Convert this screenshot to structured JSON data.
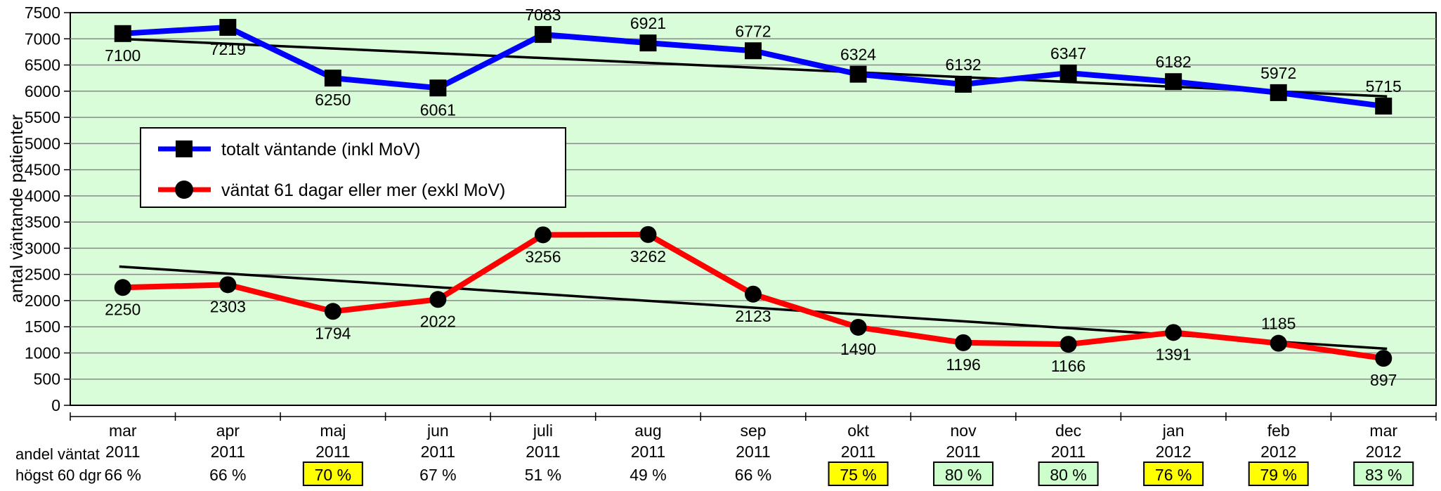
{
  "chart_data": {
    "type": "line",
    "ylabel": "antal väntande patienter",
    "ylim": [
      0,
      7500
    ],
    "ytick_step": 500,
    "grid": true,
    "plot_background": "#d9fcd9",
    "legend_placement": "upper-left",
    "categories": [
      {
        "month": "mar",
        "year": "2011"
      },
      {
        "month": "apr",
        "year": "2011"
      },
      {
        "month": "maj",
        "year": "2011"
      },
      {
        "month": "jun",
        "year": "2011"
      },
      {
        "month": "juli",
        "year": "2011"
      },
      {
        "month": "aug",
        "year": "2011"
      },
      {
        "month": "sep",
        "year": "2011"
      },
      {
        "month": "okt",
        "year": "2011"
      },
      {
        "month": "nov",
        "year": "2011"
      },
      {
        "month": "dec",
        "year": "2011"
      },
      {
        "month": "jan",
        "year": "2012"
      },
      {
        "month": "feb",
        "year": "2012"
      },
      {
        "month": "mar",
        "year": "2012"
      }
    ],
    "series": [
      {
        "name": "totalt väntande (inkl MoV)",
        "color": "#0000ff",
        "marker": "square",
        "values": [
          7100,
          7219,
          6250,
          6061,
          7083,
          6921,
          6772,
          6324,
          6132,
          6347,
          6182,
          5972,
          5715
        ],
        "label_position": [
          "below",
          "below",
          "below",
          "below",
          "above",
          "above",
          "above",
          "above",
          "above",
          "above",
          "above",
          "above",
          "above"
        ]
      },
      {
        "name": "väntat 61 dagar eller mer (exkl MoV)",
        "color": "#ff0000",
        "marker": "circle",
        "values": [
          2250,
          2303,
          1794,
          2022,
          3256,
          3262,
          2123,
          1490,
          1196,
          1166,
          1391,
          1185,
          897
        ],
        "label_position": [
          "below",
          "below",
          "below",
          "below",
          "below",
          "below",
          "below",
          "below",
          "below",
          "below",
          "below",
          "above",
          "below"
        ]
      }
    ],
    "trendlines": [
      {
        "series": 0,
        "start": 7000,
        "end": 5900,
        "color": "#000000"
      },
      {
        "series": 1,
        "start": 2650,
        "end": 1080,
        "color": "#000000"
      }
    ],
    "share_row": {
      "label_line1": "andel väntat",
      "label_line2": "högst 60 dgr",
      "values": [
        "66 %",
        "66 %",
        "70 %",
        "67 %",
        "51 %",
        "49 %",
        "66 %",
        "75 %",
        "80 %",
        "80 %",
        "76 %",
        "79 %",
        "83 %"
      ],
      "highlight": [
        "none",
        "none",
        "yellow",
        "none",
        "none",
        "none",
        "none",
        "yellow",
        "green",
        "green",
        "yellow",
        "yellow",
        "green"
      ],
      "highlight_colors": {
        "yellow": "#ffff00",
        "green": "#ccffcc"
      }
    }
  }
}
